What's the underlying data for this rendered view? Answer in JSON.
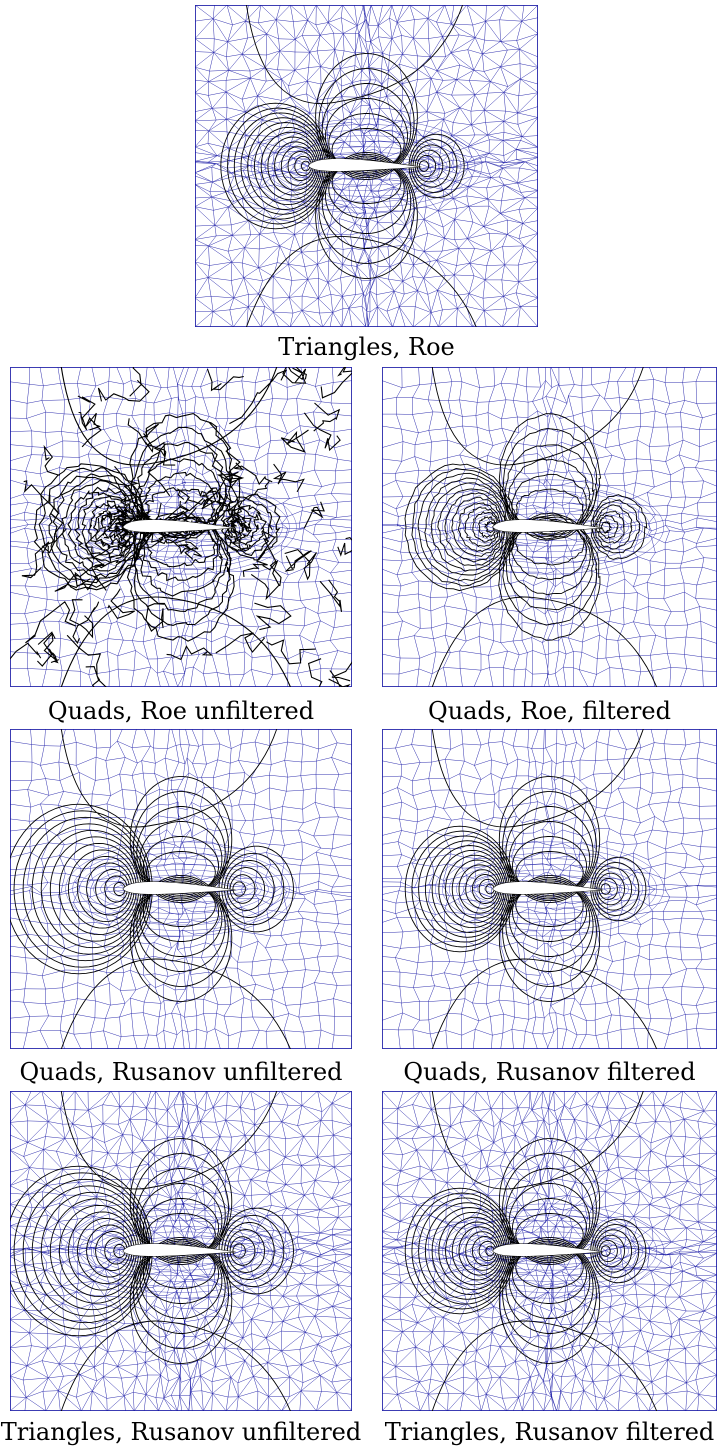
{
  "figure": {
    "panels": [
      {
        "id": "tri-roe",
        "caption": "Triangles, Roe",
        "mesh": "triangles",
        "style": "smooth"
      },
      {
        "id": "quad-roe-unfiltered",
        "caption": "Quads, Roe unfiltered",
        "mesh": "quads",
        "style": "noisy"
      },
      {
        "id": "quad-roe-filtered",
        "caption": "Quads, Roe, filtered",
        "mesh": "quads",
        "style": "jagged"
      },
      {
        "id": "quad-rusanov-unfiltered",
        "caption": "Quads, Rusanov unfiltered",
        "mesh": "quads",
        "style": "wide"
      },
      {
        "id": "quad-rusanov-filtered",
        "caption": "Quads, Rusanov filtered",
        "mesh": "quads",
        "style": "smooth"
      },
      {
        "id": "tri-rusanov-unfiltered",
        "caption": "Triangles, Rusanov unfiltered",
        "mesh": "triangles",
        "style": "wide"
      },
      {
        "id": "tri-rusanov-filtered",
        "caption": "Triangles, Rusanov filtered",
        "mesh": "triangles",
        "style": "smooth"
      }
    ],
    "colors": {
      "mesh": "#1a1aa6",
      "contour": "#000000",
      "airfoil": "#ffffff"
    }
  }
}
